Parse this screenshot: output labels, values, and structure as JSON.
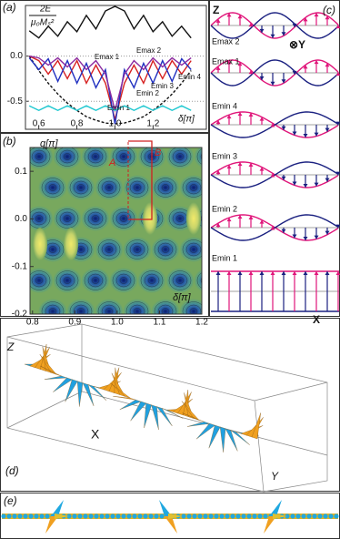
{
  "chart_data": [
    {
      "type": "line",
      "label": "(a)",
      "y_label": "2E",
      "y_label_denominator": "μ₀Mₛ²",
      "x_label": "δ[π]",
      "x": [
        0.55,
        0.6,
        0.65,
        0.7,
        0.75,
        0.8,
        0.85,
        0.9,
        0.95,
        1.0,
        1.05,
        1.1,
        1.15,
        1.2,
        1.25,
        1.3,
        1.35,
        1.4
      ],
      "series": [
        {
          "color": "#111111",
          "style": "solid",
          "values": [
            0.28,
            0.2,
            0.33,
            0.22,
            0.38,
            0.27,
            0.45,
            0.3,
            0.5,
            0.55,
            0.5,
            0.3,
            0.45,
            0.27,
            0.38,
            0.22,
            0.33,
            0.2
          ]
        },
        {
          "color": "#111111",
          "style": "dashed",
          "values": [
            0,
            -0.16,
            -0.3,
            -0.42,
            -0.52,
            -0.6,
            -0.67,
            -0.71,
            -0.74,
            -0.75,
            -0.74,
            -0.71,
            -0.67,
            -0.6,
            -0.52,
            -0.42,
            -0.3,
            -0.16
          ]
        },
        {
          "color": "#d62020",
          "style": "solid",
          "values": [
            0,
            -0.05,
            -0.2,
            -0.05,
            -0.25,
            -0.05,
            -0.3,
            -0.1,
            -0.3,
            -0.7,
            -0.3,
            -0.1,
            -0.3,
            -0.05,
            -0.25,
            -0.05,
            -0.2,
            -0.05
          ]
        },
        {
          "color": "#2030c0",
          "style": "solid",
          "values": [
            -0.02,
            -0.15,
            -0.03,
            -0.28,
            -0.05,
            -0.3,
            -0.08,
            -0.35,
            -0.15,
            -0.75,
            -0.15,
            -0.35,
            -0.08,
            -0.3,
            -0.05,
            -0.28,
            -0.03,
            -0.15
          ]
        },
        {
          "color": "#8a2aa0",
          "style": "solid",
          "values": [
            0,
            -0.02,
            -0.1,
            -0.02,
            -0.12,
            -0.02,
            -0.15,
            -0.05,
            -0.2,
            -0.6,
            -0.2,
            -0.05,
            -0.15,
            -0.02,
            -0.12,
            -0.02,
            -0.1,
            -0.02
          ]
        },
        {
          "color": "#20c8d0",
          "style": "solid",
          "values": [
            -0.55,
            -0.6,
            -0.55,
            -0.6,
            -0.55,
            -0.6,
            -0.55,
            -0.6,
            -0.55,
            -0.6,
            -0.55,
            -0.6,
            -0.55,
            -0.6,
            -0.55,
            -0.6,
            -0.55,
            -0.6
          ]
        }
      ],
      "annotations": [
        "Emax 2",
        "Emax 1",
        "Emin 4",
        "Emin 3",
        "Emin 2",
        "Emin 1"
      ],
      "xlim": [
        0.53,
        1.48
      ],
      "ylim": [
        -0.81,
        0.56
      ],
      "xticks": [
        0.6,
        0.8,
        {
          "value": 1,
          "label": "1.0"
        },
        1.2
      ],
      "yticks": [
        {
          "value": 0,
          "label": "0.0"
        },
        -0.5
      ]
    },
    {
      "type": "contour",
      "label": "(b)",
      "y_label": "q[π]",
      "x_label": "δ[π]",
      "annotations": [
        "A",
        "B"
      ],
      "xlim": [
        0.794,
        1.2
      ],
      "ylim": [
        -0.2,
        0.15
      ],
      "xticks": [
        0.8,
        0.9,
        {
          "value": 1,
          "label": "1.0"
        },
        1.1,
        1.2
      ],
      "yticks": [
        0.1,
        {
          "value": 0,
          "label": "0.0"
        },
        -0.1,
        -0.2
      ]
    }
  ],
  "panels": {
    "c": {
      "label": "(c)",
      "z": "Z",
      "y": "⊗Y",
      "x": "X",
      "rows": [
        "Emax 2",
        "Emax 1",
        "Emin 4",
        "Emin 3",
        "Emin 2",
        "Emin 1"
      ]
    },
    "d": {
      "label": "(d)",
      "z": "Z",
      "x": "X",
      "y": "Y"
    },
    "e": {
      "label": "(e)"
    }
  }
}
